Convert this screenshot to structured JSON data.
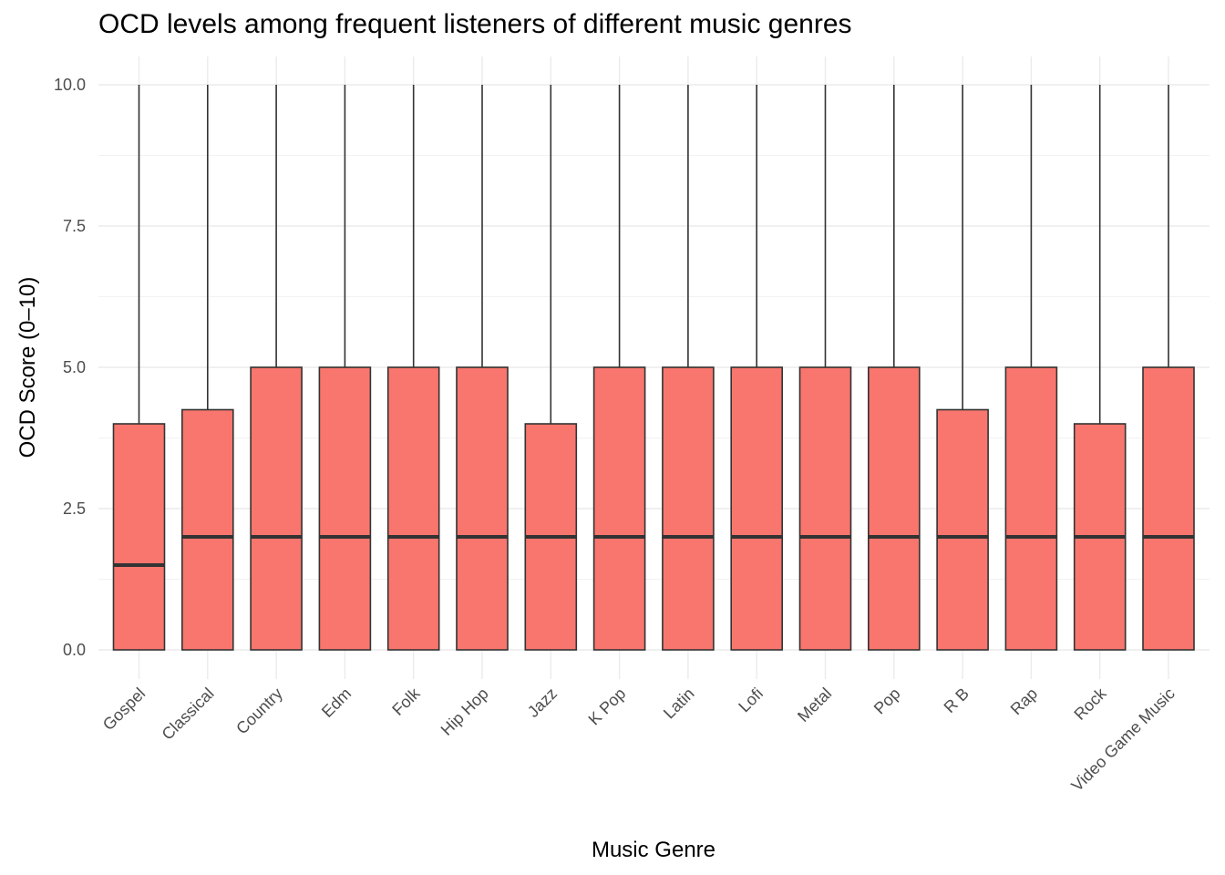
{
  "chart_data": {
    "type": "box",
    "title": "OCD levels among frequent listeners of different music genres",
    "xlabel": "Music Genre",
    "ylabel": "OCD Score (0–10)",
    "ylim": [
      0,
      10
    ],
    "yticks": [
      "0.0",
      "2.5",
      "5.0",
      "7.5",
      "10.0"
    ],
    "grid": true,
    "fill_color": "#F8766D",
    "categories": [
      "Gospel",
      "Classical",
      "Country",
      "Edm",
      "Folk",
      "Hip Hop",
      "Jazz",
      "K Pop",
      "Latin",
      "Lofi",
      "Metal",
      "Pop",
      "R B",
      "Rap",
      "Rock",
      "Video Game Music"
    ],
    "series": [
      {
        "category": "Gospel",
        "min": 0,
        "q1": 0,
        "median": 1.5,
        "q3": 4,
        "max": 10
      },
      {
        "category": "Classical",
        "min": 0,
        "q1": 0,
        "median": 2,
        "q3": 4.25,
        "max": 10
      },
      {
        "category": "Country",
        "min": 0,
        "q1": 0,
        "median": 2,
        "q3": 5,
        "max": 10
      },
      {
        "category": "Edm",
        "min": 0,
        "q1": 0,
        "median": 2,
        "q3": 5,
        "max": 10
      },
      {
        "category": "Folk",
        "min": 0,
        "q1": 0,
        "median": 2,
        "q3": 5,
        "max": 10
      },
      {
        "category": "Hip Hop",
        "min": 0,
        "q1": 0,
        "median": 2,
        "q3": 5,
        "max": 10
      },
      {
        "category": "Jazz",
        "min": 0,
        "q1": 0,
        "median": 2,
        "q3": 4,
        "max": 10
      },
      {
        "category": "K Pop",
        "min": 0,
        "q1": 0,
        "median": 2,
        "q3": 5,
        "max": 10
      },
      {
        "category": "Latin",
        "min": 0,
        "q1": 0,
        "median": 2,
        "q3": 5,
        "max": 10
      },
      {
        "category": "Lofi",
        "min": 0,
        "q1": 0,
        "median": 2,
        "q3": 5,
        "max": 10
      },
      {
        "category": "Metal",
        "min": 0,
        "q1": 0,
        "median": 2,
        "q3": 5,
        "max": 10
      },
      {
        "category": "Pop",
        "min": 0,
        "q1": 0,
        "median": 2,
        "q3": 5,
        "max": 10
      },
      {
        "category": "R B",
        "min": 0,
        "q1": 0,
        "median": 2,
        "q3": 4.25,
        "max": 10
      },
      {
        "category": "Rap",
        "min": 0,
        "q1": 0,
        "median": 2,
        "q3": 5,
        "max": 10
      },
      {
        "category": "Rock",
        "min": 0,
        "q1": 0,
        "median": 2,
        "q3": 4,
        "max": 10
      },
      {
        "category": "Video Game Music",
        "min": 0,
        "q1": 0,
        "median": 2,
        "q3": 5,
        "max": 10
      }
    ]
  }
}
